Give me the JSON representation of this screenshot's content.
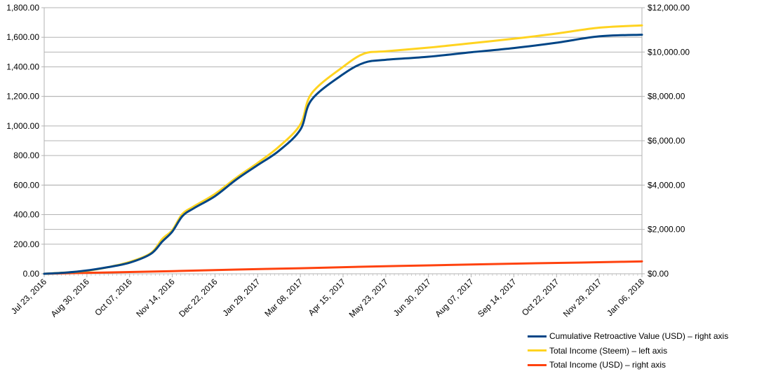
{
  "chart_data": {
    "type": "line",
    "title": "",
    "xlabel": "",
    "ylabel_left": "",
    "ylabel_right": "",
    "grid": true,
    "legend_position": "bottom-right",
    "x_labels": [
      "Jul 23, 2016",
      "Aug 30, 2016",
      "Oct 07, 2016",
      "Nov 14, 2016",
      "Dec 22, 2016",
      "Jan 29, 2017",
      "Mar 08, 2017",
      "Apr 15, 2017",
      "May 23, 2017",
      "Jun 30, 2017",
      "Aug 07, 2017",
      "Sep 14, 2017",
      "Oct 22, 2017",
      "Nov 29, 2017",
      "Jan 06, 2018"
    ],
    "left_axis": {
      "ylim": [
        0,
        1800
      ],
      "ticks": [
        "0.00",
        "200.00",
        "400.00",
        "600.00",
        "800.00",
        "1,000.00",
        "1,200.00",
        "1,400.00",
        "1,600.00",
        "1,800.00"
      ]
    },
    "right_axis": {
      "ylim": [
        0,
        12000
      ],
      "ticks": [
        "$0.00",
        "$2,000.00",
        "$4,000.00",
        "$6,000.00",
        "$8,000.00",
        "$10,000.00",
        "$12,000.00"
      ]
    },
    "series": [
      {
        "name": "Cumulative Retroactive Value (USD) – right axis",
        "axis": "right",
        "color": "#004586",
        "points": [
          [
            "Jul 23, 2016",
            0
          ],
          [
            "Aug 11, 2016",
            50
          ],
          [
            "Aug 30, 2016",
            150
          ],
          [
            "Sep 18, 2016",
            300
          ],
          [
            "Oct 07, 2016",
            500
          ],
          [
            "Oct 26, 2016",
            900
          ],
          [
            "Nov 05, 2016",
            1450
          ],
          [
            "Nov 14, 2016",
            1900
          ],
          [
            "Nov 23, 2016",
            2600
          ],
          [
            "Dec 03, 2016",
            2950
          ],
          [
            "Dec 22, 2016",
            3500
          ],
          [
            "Jan 10, 2017",
            4250
          ],
          [
            "Jan 29, 2017",
            4900
          ],
          [
            "Feb 17, 2017",
            5550
          ],
          [
            "Mar 08, 2017",
            6500
          ],
          [
            "Mar 18, 2017",
            7850
          ],
          [
            "Apr 15, 2017",
            9000
          ],
          [
            "May 04, 2017",
            9520
          ],
          [
            "May 23, 2017",
            9650
          ],
          [
            "Jun 30, 2017",
            9790
          ],
          [
            "Aug 07, 2017",
            9990
          ],
          [
            "Sep 14, 2017",
            10180
          ],
          [
            "Oct 22, 2017",
            10420
          ],
          [
            "Nov 29, 2017",
            10710
          ],
          [
            "Jan 06, 2018",
            10780
          ]
        ]
      },
      {
        "name": "Total Income (Steem) – left axis",
        "axis": "left",
        "color": "#ffd320",
        "points": [
          [
            "Jul 23, 2016",
            0
          ],
          [
            "Aug 11, 2016",
            8
          ],
          [
            "Aug 30, 2016",
            20
          ],
          [
            "Sep 18, 2016",
            45
          ],
          [
            "Oct 07, 2016",
            80
          ],
          [
            "Oct 26, 2016",
            140
          ],
          [
            "Nov 05, 2016",
            235
          ],
          [
            "Nov 14, 2016",
            295
          ],
          [
            "Nov 23, 2016",
            405
          ],
          [
            "Dec 03, 2016",
            455
          ],
          [
            "Dec 22, 2016",
            540
          ],
          [
            "Jan 10, 2017",
            650
          ],
          [
            "Jan 29, 2017",
            750
          ],
          [
            "Feb 17, 2017",
            860
          ],
          [
            "Mar 08, 2017",
            1010
          ],
          [
            "Mar 18, 2017",
            1220
          ],
          [
            "Apr 15, 2017",
            1400
          ],
          [
            "May 04, 2017",
            1490
          ],
          [
            "May 23, 2017",
            1505
          ],
          [
            "Jun 30, 2017",
            1530
          ],
          [
            "Aug 07, 2017",
            1560
          ],
          [
            "Sep 14, 2017",
            1590
          ],
          [
            "Oct 22, 2017",
            1625
          ],
          [
            "Nov 29, 2017",
            1665
          ],
          [
            "Jan 06, 2018",
            1680
          ]
        ]
      },
      {
        "name": "Total Income (USD) – right axis",
        "axis": "right",
        "color": "#ff420e",
        "points": [
          [
            "Jul 23, 2016",
            0
          ],
          [
            "Sep 18, 2016",
            60
          ],
          [
            "Nov 14, 2016",
            120
          ],
          [
            "Jan 10, 2017",
            190
          ],
          [
            "Mar 08, 2017",
            250
          ],
          [
            "May 04, 2017",
            320
          ],
          [
            "Jul 01, 2017",
            380
          ],
          [
            "Aug 27, 2017",
            440
          ],
          [
            "Oct 23, 2017",
            490
          ],
          [
            "Dec 19, 2017",
            540
          ],
          [
            "Jan 06, 2018",
            560
          ]
        ]
      }
    ]
  }
}
